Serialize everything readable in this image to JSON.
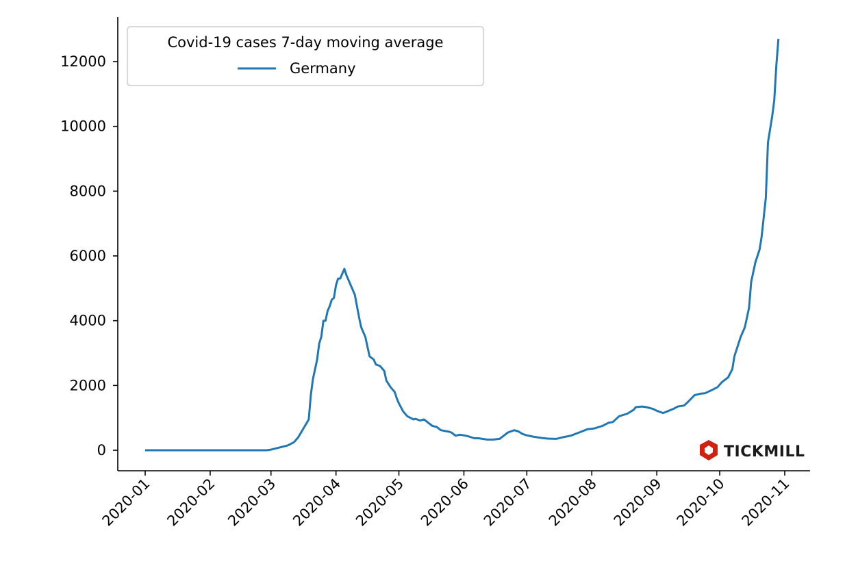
{
  "chart_data": {
    "type": "line",
    "title": "",
    "xlabel": "",
    "ylabel": "",
    "legend": {
      "title": "Covid-19 cases 7-day moving average",
      "placement": "top-left"
    },
    "x_unit": "days since 2020-01-01",
    "xlim_days": [
      -13,
      318
    ],
    "ylim": [
      -640,
      13400
    ],
    "grid": false,
    "x_ticks": [
      {
        "label": "2020-01",
        "day": 0
      },
      {
        "label": "2020-02",
        "day": 31
      },
      {
        "label": "2020-03",
        "day": 60
      },
      {
        "label": "2020-04",
        "day": 91
      },
      {
        "label": "2020-05",
        "day": 121
      },
      {
        "label": "2020-06",
        "day": 152
      },
      {
        "label": "2020-07",
        "day": 182
      },
      {
        "label": "2020-08",
        "day": 213
      },
      {
        "label": "2020-09",
        "day": 244
      },
      {
        "label": "2020-10",
        "day": 274
      },
      {
        "label": "2020-11",
        "day": 305
      }
    ],
    "y_ticks": [
      0,
      2000,
      4000,
      6000,
      8000,
      10000,
      12000
    ],
    "series": [
      {
        "name": "Germany",
        "color": "#1f77b4",
        "x": [
          0,
          58,
          60,
          65,
          68,
          71,
          73,
          78,
          79,
          80,
          82,
          83,
          84,
          85,
          86,
          87,
          88,
          89,
          90,
          91,
          92,
          93,
          95,
          96,
          98,
          100,
          102,
          103,
          105,
          107,
          109,
          110,
          112,
          114,
          115,
          117,
          119,
          120,
          121,
          123,
          125,
          128,
          129,
          131,
          133,
          135,
          137,
          139,
          141,
          145,
          146,
          148,
          150,
          152,
          154,
          157,
          159,
          163,
          166,
          169,
          171,
          173,
          176,
          178,
          180,
          182,
          185,
          189,
          192,
          196,
          199,
          203,
          207,
          211,
          214,
          218,
          221,
          223,
          226,
          230,
          233,
          234,
          237,
          239,
          242,
          244,
          247,
          249,
          252,
          254,
          257,
          259,
          262,
          265,
          267,
          270,
          273,
          275,
          278,
          280,
          281,
          283,
          284,
          286,
          288,
          289,
          291,
          293,
          294,
          296,
          297,
          299,
          300,
          301,
          302
        ],
        "values": [
          0,
          0,
          20,
          100,
          150,
          250,
          400,
          950,
          1700,
          2200,
          2800,
          3300,
          3500,
          4000,
          4000,
          4300,
          4450,
          4650,
          4700,
          5100,
          5300,
          5300,
          5600,
          5400,
          5100,
          4800,
          4100,
          3800,
          3500,
          2900,
          2800,
          2650,
          2600,
          2450,
          2150,
          1950,
          1800,
          1600,
          1450,
          1200,
          1050,
          950,
          970,
          920,
          950,
          850,
          750,
          720,
          620,
          570,
          550,
          450,
          480,
          460,
          430,
          370,
          370,
          330,
          330,
          350,
          450,
          550,
          620,
          580,
          500,
          460,
          420,
          380,
          360,
          350,
          400,
          450,
          550,
          650,
          670,
          750,
          850,
          870,
          1050,
          1130,
          1250,
          1330,
          1350,
          1330,
          1280,
          1220,
          1150,
          1200,
          1280,
          1350,
          1380,
          1500,
          1700,
          1750,
          1760,
          1850,
          1950,
          2100,
          2250,
          2500,
          2900,
          3300,
          3500,
          3800,
          4400,
          5200,
          5800,
          6200,
          6600,
          7800,
          9500,
          10300,
          10800,
          11900,
          12700
        ]
      }
    ]
  },
  "watermark": {
    "text": "TICKMILL",
    "color": "#d0200f"
  }
}
